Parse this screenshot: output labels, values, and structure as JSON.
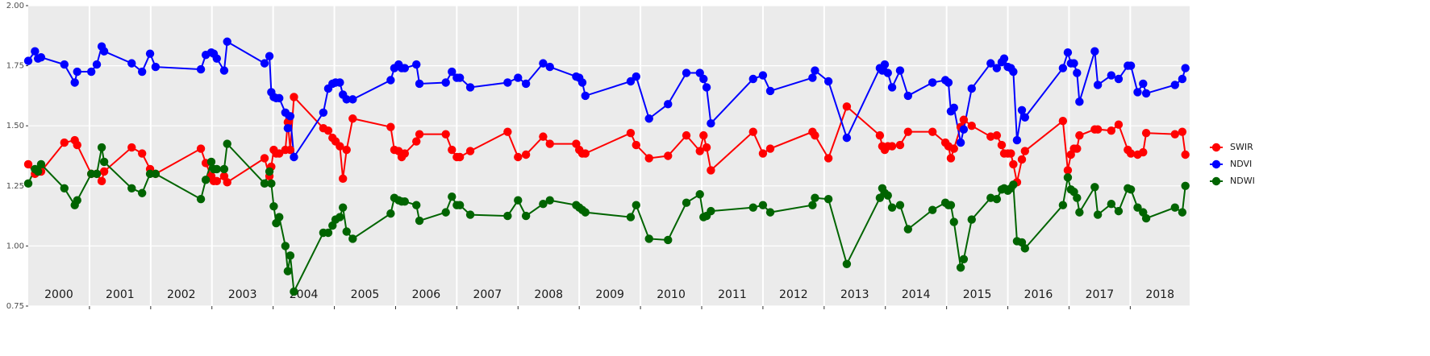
{
  "chart_data": {
    "type": "line",
    "x": [
      2000.0,
      2000.11,
      2000.16,
      2000.21,
      2000.59,
      2000.76,
      2000.8,
      2001.03,
      2001.12,
      2001.2,
      2001.24,
      2001.69,
      2001.86,
      2001.99,
      2002.08,
      2002.82,
      2002.9,
      2002.99,
      2003.03,
      2003.08,
      2003.2,
      2003.25,
      2003.86,
      2003.94,
      2003.97,
      2004.01,
      2004.05,
      2004.1,
      2004.2,
      2004.24,
      2004.28,
      2004.34,
      2004.82,
      2004.9,
      2004.97,
      2005.02,
      2005.09,
      2005.14,
      2005.2,
      2005.3,
      2005.92,
      2005.98,
      2006.05,
      2006.1,
      2006.15,
      2006.34,
      2006.39,
      2006.82,
      2006.92,
      2007.0,
      2007.05,
      2007.22,
      2007.83,
      2008.0,
      2008.13,
      2008.41,
      2008.52,
      2008.95,
      2009.0,
      2009.05,
      2009.1,
      2009.84,
      2009.93,
      2010.14,
      2010.45,
      2010.75,
      2010.97,
      2011.03,
      2011.08,
      2011.15,
      2011.84,
      2012.0,
      2012.12,
      2012.81,
      2012.85,
      2013.07,
      2013.37,
      2013.91,
      2013.95,
      2013.99,
      2014.04,
      2014.11,
      2014.24,
      2014.37,
      2014.77,
      2014.98,
      2015.03,
      2015.07,
      2015.12,
      2015.23,
      2015.28,
      2015.41,
      2015.72,
      2015.82,
      2015.9,
      2015.94,
      2016.0,
      2016.05,
      2016.09,
      2016.15,
      2016.23,
      2016.28,
      2016.9,
      2016.98,
      2017.03,
      2017.08,
      2017.13,
      2017.17,
      2017.42,
      2017.47,
      2017.69,
      2017.81,
      2017.96,
      2018.01,
      2018.12,
      2018.21,
      2018.26,
      2018.73,
      2018.85,
      2018.9
    ],
    "series": [
      {
        "name": "SWIR",
        "color": "#ff0000",
        "values": [
          1.34,
          1.3,
          1.31,
          1.31,
          1.43,
          1.44,
          1.42,
          1.3,
          1.3,
          1.27,
          1.31,
          1.41,
          1.385,
          1.32,
          1.3,
          1.405,
          1.345,
          1.29,
          1.27,
          1.27,
          1.29,
          1.265,
          1.365,
          1.29,
          1.33,
          1.4,
          1.385,
          1.385,
          1.4,
          1.515,
          1.4,
          1.62,
          1.49,
          1.48,
          1.45,
          1.435,
          1.415,
          1.28,
          1.4,
          1.53,
          1.495,
          1.4,
          1.395,
          1.37,
          1.385,
          1.435,
          1.465,
          1.465,
          1.4,
          1.37,
          1.37,
          1.395,
          1.475,
          1.37,
          1.38,
          1.455,
          1.425,
          1.425,
          1.4,
          1.385,
          1.385,
          1.47,
          1.42,
          1.365,
          1.375,
          1.46,
          1.395,
          1.46,
          1.41,
          1.315,
          1.475,
          1.385,
          1.405,
          1.475,
          1.46,
          1.365,
          1.58,
          1.46,
          1.415,
          1.4,
          1.415,
          1.415,
          1.42,
          1.475,
          1.475,
          1.43,
          1.415,
          1.365,
          1.405,
          1.495,
          1.525,
          1.5,
          1.455,
          1.46,
          1.42,
          1.385,
          1.385,
          1.385,
          1.34,
          1.265,
          1.36,
          1.395,
          1.52,
          1.315,
          1.38,
          1.405,
          1.405,
          1.46,
          1.485,
          1.485,
          1.48,
          1.505,
          1.4,
          1.385,
          1.38,
          1.39,
          1.47,
          1.465,
          1.475,
          1.38
        ]
      },
      {
        "name": "NDVI",
        "color": "#0000ff",
        "values": [
          1.77,
          1.81,
          1.78,
          1.785,
          1.755,
          1.68,
          1.725,
          1.725,
          1.755,
          1.83,
          1.81,
          1.76,
          1.725,
          1.8,
          1.745,
          1.735,
          1.795,
          1.805,
          1.8,
          1.78,
          1.73,
          1.85,
          1.76,
          1.79,
          1.64,
          1.62,
          1.615,
          1.615,
          1.555,
          1.49,
          1.54,
          1.37,
          1.555,
          1.655,
          1.675,
          1.68,
          1.68,
          1.63,
          1.61,
          1.61,
          1.69,
          1.74,
          1.755,
          1.74,
          1.74,
          1.755,
          1.675,
          1.68,
          1.725,
          1.7,
          1.7,
          1.66,
          1.68,
          1.7,
          1.675,
          1.76,
          1.745,
          1.705,
          1.7,
          1.68,
          1.625,
          1.685,
          1.705,
          1.53,
          1.59,
          1.72,
          1.72,
          1.695,
          1.66,
          1.51,
          1.695,
          1.71,
          1.645,
          1.7,
          1.73,
          1.685,
          1.45,
          1.74,
          1.73,
          1.755,
          1.72,
          1.66,
          1.73,
          1.625,
          1.68,
          1.69,
          1.68,
          1.56,
          1.575,
          1.43,
          1.485,
          1.655,
          1.76,
          1.74,
          1.765,
          1.78,
          1.745,
          1.74,
          1.725,
          1.44,
          1.565,
          1.535,
          1.74,
          1.805,
          1.76,
          1.76,
          1.72,
          1.6,
          1.81,
          1.67,
          1.71,
          1.695,
          1.75,
          1.75,
          1.64,
          1.675,
          1.635,
          1.67,
          1.695,
          1.74
        ]
      },
      {
        "name": "NDWI",
        "color": "#006400",
        "values": [
          1.26,
          1.32,
          1.31,
          1.34,
          1.24,
          1.17,
          1.19,
          1.3,
          1.3,
          1.41,
          1.35,
          1.24,
          1.22,
          1.3,
          1.3,
          1.195,
          1.275,
          1.35,
          1.32,
          1.32,
          1.32,
          1.425,
          1.26,
          1.31,
          1.26,
          1.165,
          1.095,
          1.12,
          1.0,
          0.895,
          0.96,
          0.81,
          1.055,
          1.055,
          1.085,
          1.11,
          1.12,
          1.16,
          1.06,
          1.03,
          1.135,
          1.2,
          1.19,
          1.185,
          1.185,
          1.17,
          1.105,
          1.14,
          1.205,
          1.17,
          1.17,
          1.13,
          1.125,
          1.19,
          1.125,
          1.175,
          1.19,
          1.17,
          1.16,
          1.15,
          1.14,
          1.12,
          1.17,
          1.03,
          1.025,
          1.18,
          1.215,
          1.12,
          1.125,
          1.145,
          1.16,
          1.17,
          1.14,
          1.17,
          1.2,
          1.195,
          0.925,
          1.2,
          1.24,
          1.22,
          1.21,
          1.16,
          1.17,
          1.07,
          1.15,
          1.18,
          1.17,
          1.17,
          1.1,
          0.91,
          0.945,
          1.11,
          1.2,
          1.195,
          1.235,
          1.24,
          1.23,
          1.24,
          1.255,
          1.02,
          1.015,
          0.99,
          1.17,
          1.285,
          1.235,
          1.225,
          1.2,
          1.14,
          1.245,
          1.13,
          1.175,
          1.145,
          1.24,
          1.235,
          1.16,
          1.14,
          1.115,
          1.16,
          1.14,
          1.25
        ]
      }
    ],
    "xlim": [
      2000,
      2018.97
    ],
    "xticks": [
      2001,
      2002,
      2003,
      2004,
      2005,
      2006,
      2007,
      2008,
      2009,
      2010,
      2011,
      2012,
      2013,
      2014,
      2015,
      2016,
      2017,
      2018
    ],
    "year_labels": [
      "2000",
      "2001",
      "2002",
      "2003",
      "2004",
      "2005",
      "2006",
      "2007",
      "2008",
      "2009",
      "2010",
      "2011",
      "2012",
      "2013",
      "2014",
      "2015",
      "2016",
      "2017",
      "2018"
    ],
    "ylim": [
      0.75,
      2
    ],
    "yticks": [
      0.75,
      {
        "value": 1,
        "label": "1.00"
      },
      1.25,
      {
        "value": 1.5,
        "label": "1.50"
      },
      1.75,
      {
        "value": 2,
        "label": "2.00"
      }
    ],
    "grid": true,
    "legend": "right"
  }
}
